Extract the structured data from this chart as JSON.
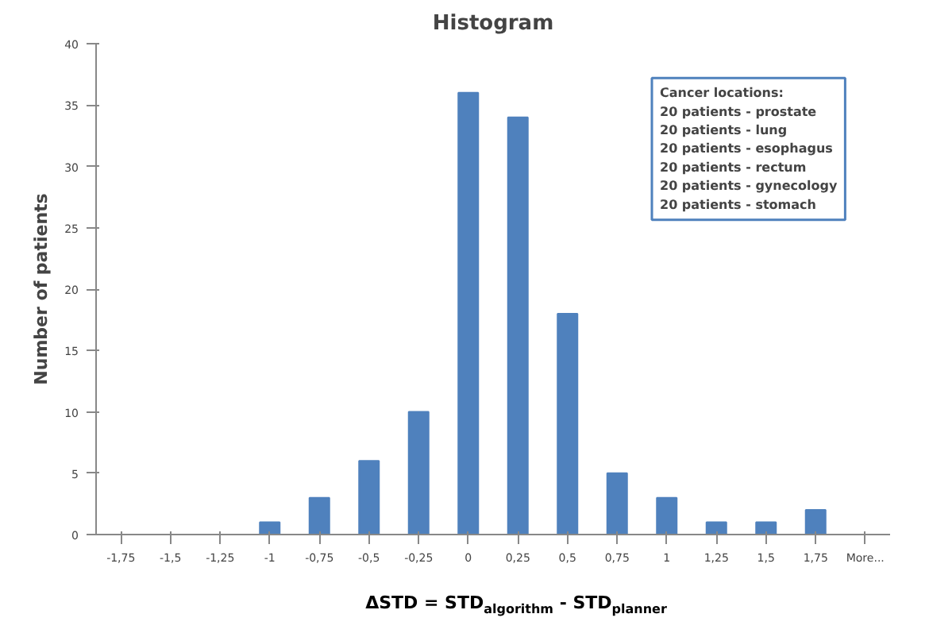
{
  "chart_data": {
    "type": "bar",
    "title": "Histogram",
    "xlabel": "ΔSTD = STD$_{algorithm}$ - STD$_{planner}$",
    "ylabel": "Number of patients",
    "categories": [
      "-1,75",
      "-1,5",
      "-1,25",
      "-1",
      "-0,75",
      "-0,5",
      "-0,25",
      "0",
      "0,25",
      "0,5",
      "0,75",
      "1",
      "1,25",
      "1,5",
      "1,75",
      "More..."
    ],
    "values": [
      0,
      0,
      0,
      1,
      3,
      6,
      10,
      36,
      34,
      18,
      5,
      3,
      1,
      1,
      2,
      0
    ],
    "color": "#4f81bd",
    "ylim": [
      0,
      40
    ],
    "yticks": [
      0,
      5,
      10,
      15,
      20,
      25,
      30,
      35,
      40
    ],
    "grid": false,
    "annotations": [
      "Cancer locations:\n20 patients - prostate\n20 patients - lung\n20 patients - esophagus\n20 patients - rectum\n20 patients - gynecology\n20 patients - stomach"
    ]
  }
}
